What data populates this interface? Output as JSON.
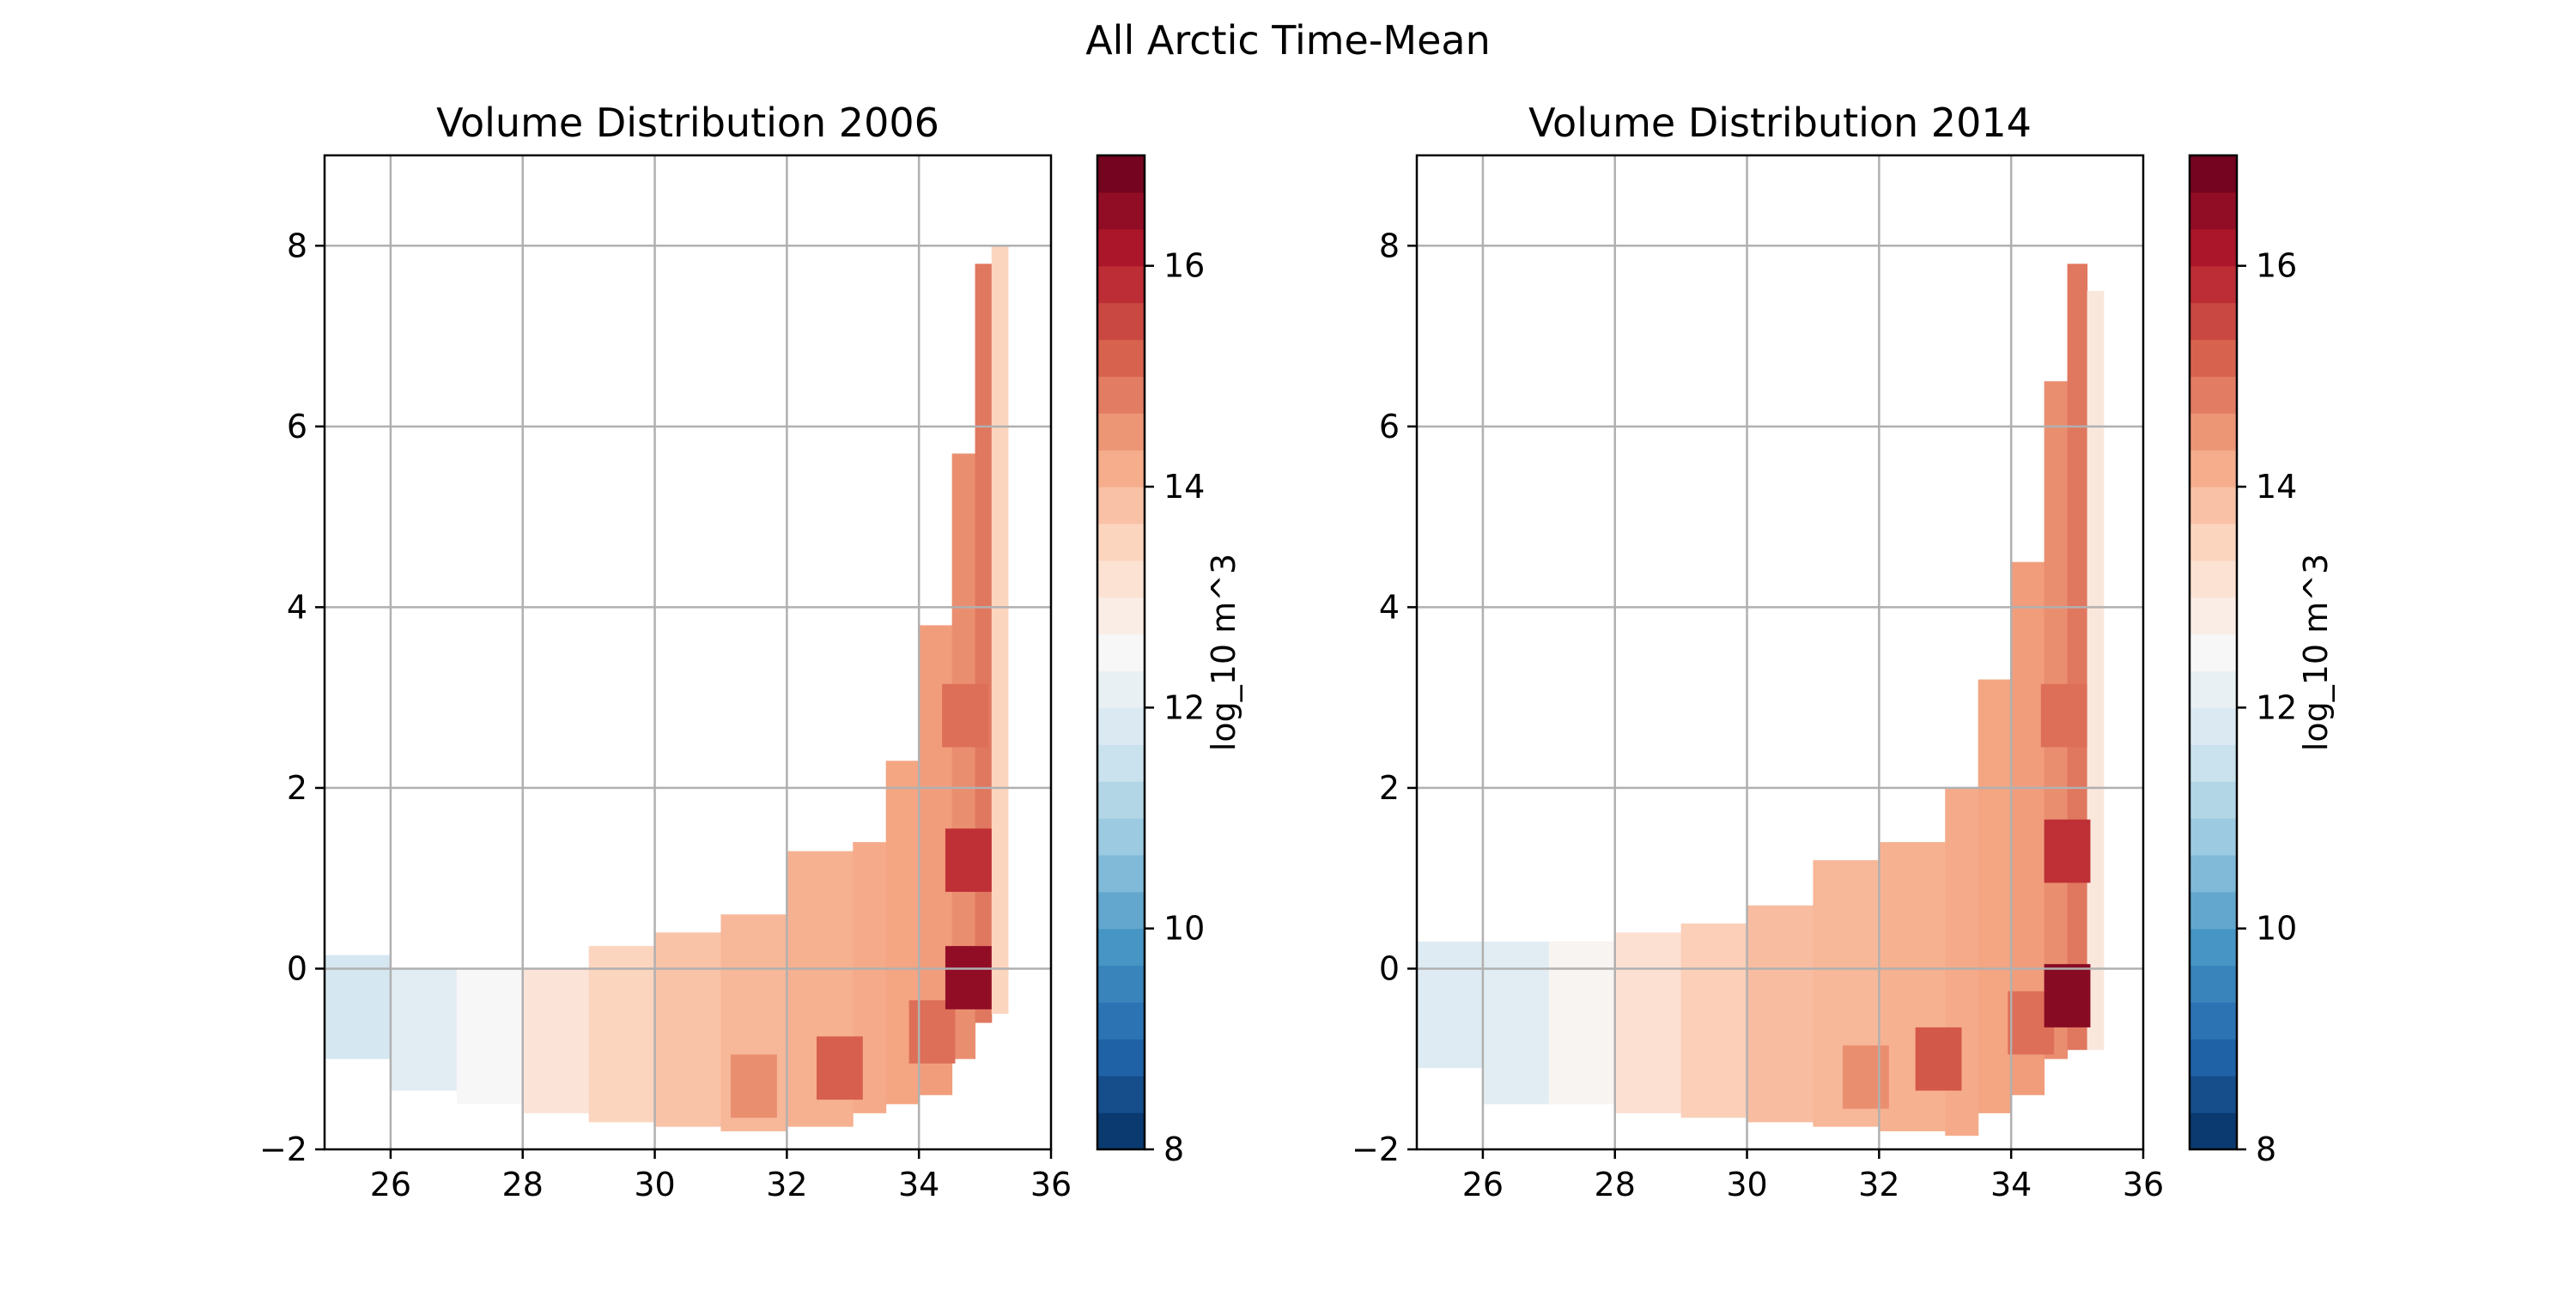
{
  "figure": {
    "suptitle": "All Arctic Time-Mean"
  },
  "chart_data": [
    {
      "type": "heatmap",
      "title": "Volume Distribution 2006",
      "xlabel": "",
      "ylabel": "",
      "xlim": [
        25,
        36
      ],
      "ylim": [
        -2,
        9
      ],
      "xticks": [
        26,
        28,
        30,
        32,
        34,
        36
      ],
      "yticks": [
        -2,
        0,
        2,
        4,
        6,
        8
      ],
      "grid": true,
      "colormap": "RdBu_r",
      "colorbar": {
        "label": "log_10 m^3",
        "range": [
          8,
          17
        ],
        "levels": 27,
        "ticks": [
          8,
          10,
          12,
          14,
          16
        ]
      },
      "bands": [
        {
          "x": 25.0,
          "y0": -1.0,
          "y1": 0.15,
          "v": 11.7
        },
        {
          "x": 26.0,
          "y0": -1.35,
          "y1": 0.0,
          "v": 12.0
        },
        {
          "x": 27.0,
          "y0": -1.5,
          "y1": 0.0,
          "v": 12.5
        },
        {
          "x": 28.0,
          "y0": -1.6,
          "y1": 0.0,
          "v": 13.1
        },
        {
          "x": 29.0,
          "y0": -1.7,
          "y1": 0.25,
          "v": 13.5
        },
        {
          "x": 30.0,
          "y0": -1.75,
          "y1": 0.4,
          "v": 13.8
        },
        {
          "x": 31.0,
          "y0": -1.8,
          "y1": 0.6,
          "v": 14.0
        },
        {
          "x": 32.0,
          "y0": -1.75,
          "y1": 1.3,
          "v": 14.1
        },
        {
          "x": 33.0,
          "y0": -1.6,
          "y1": 1.4,
          "v": 14.2
        },
        {
          "x": 33.5,
          "y0": -1.5,
          "y1": 2.3,
          "v": 14.3
        },
        {
          "x": 34.0,
          "y0": -1.4,
          "y1": 3.8,
          "v": 14.4
        },
        {
          "x": 34.5,
          "y0": -1.0,
          "y1": 5.7,
          "v": 14.6
        },
        {
          "x": 34.85,
          "y0": -0.6,
          "y1": 7.8,
          "v": 14.9
        },
        {
          "x": 35.1,
          "y0": -0.5,
          "y1": 8.0,
          "v": 13.5
        }
      ],
      "hotspots": [
        {
          "x": 32.8,
          "y": -1.1,
          "v": 15.2
        },
        {
          "x": 31.5,
          "y": -1.3,
          "v": 14.6
        },
        {
          "x": 34.2,
          "y": -0.7,
          "v": 15.0
        },
        {
          "x": 34.75,
          "y": -0.1,
          "v": 16.5
        },
        {
          "x": 34.75,
          "y": 1.2,
          "v": 15.8
        },
        {
          "x": 34.7,
          "y": 2.8,
          "v": 15.0
        }
      ]
    },
    {
      "type": "heatmap",
      "title": "Volume Distribution 2014",
      "xlabel": "",
      "ylabel": "",
      "xlim": [
        25,
        36
      ],
      "ylim": [
        -2,
        9
      ],
      "xticks": [
        26,
        28,
        30,
        32,
        34,
        36
      ],
      "yticks": [
        -2,
        0,
        2,
        4,
        6,
        8
      ],
      "grid": true,
      "colormap": "RdBu_r",
      "colorbar": {
        "label": "log_10 m^3",
        "range": [
          8,
          17
        ],
        "levels": 27,
        "ticks": [
          8,
          10,
          12,
          14,
          16
        ]
      },
      "bands": [
        {
          "x": 25.0,
          "y0": -1.1,
          "y1": 0.3,
          "v": 11.9
        },
        {
          "x": 26.0,
          "y0": -1.5,
          "y1": 0.3,
          "v": 12.0
        },
        {
          "x": 27.0,
          "y0": -1.5,
          "y1": 0.3,
          "v": 12.6
        },
        {
          "x": 28.0,
          "y0": -1.6,
          "y1": 0.4,
          "v": 13.2
        },
        {
          "x": 29.0,
          "y0": -1.65,
          "y1": 0.5,
          "v": 13.6
        },
        {
          "x": 30.0,
          "y0": -1.7,
          "y1": 0.7,
          "v": 13.9
        },
        {
          "x": 31.0,
          "y0": -1.75,
          "y1": 1.2,
          "v": 14.0
        },
        {
          "x": 32.0,
          "y0": -1.8,
          "y1": 1.4,
          "v": 14.1
        },
        {
          "x": 33.0,
          "y0": -1.85,
          "y1": 2.0,
          "v": 14.2
        },
        {
          "x": 33.5,
          "y0": -1.6,
          "y1": 3.2,
          "v": 14.3
        },
        {
          "x": 34.0,
          "y0": -1.4,
          "y1": 4.5,
          "v": 14.4
        },
        {
          "x": 34.5,
          "y0": -1.0,
          "y1": 6.5,
          "v": 14.6
        },
        {
          "x": 34.85,
          "y0": -0.9,
          "y1": 7.8,
          "v": 14.9
        },
        {
          "x": 35.15,
          "y0": -0.9,
          "y1": 7.5,
          "v": 13.0
        }
      ],
      "hotspots": [
        {
          "x": 32.9,
          "y": -1.0,
          "v": 15.3
        },
        {
          "x": 31.8,
          "y": -1.2,
          "v": 14.6
        },
        {
          "x": 34.3,
          "y": -0.6,
          "v": 15.0
        },
        {
          "x": 34.85,
          "y": -0.3,
          "v": 16.6
        },
        {
          "x": 34.85,
          "y": 1.3,
          "v": 15.8
        },
        {
          "x": 34.8,
          "y": 2.8,
          "v": 15.0
        }
      ]
    }
  ]
}
